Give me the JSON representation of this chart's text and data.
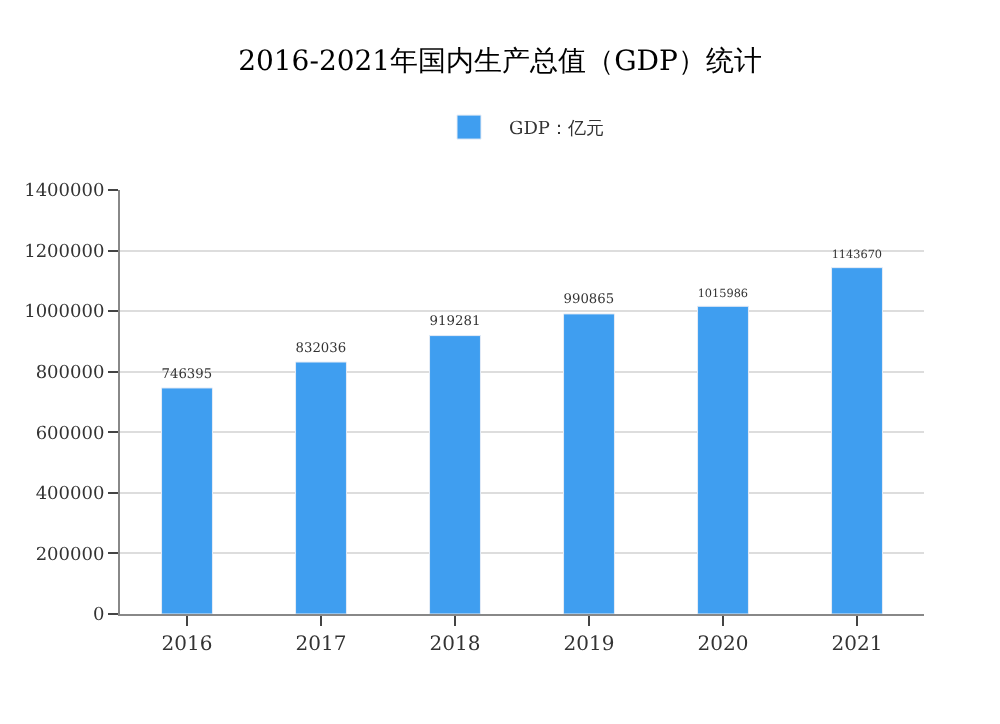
{
  "chart_data": {
    "type": "bar",
    "title": "2016-2021年国内生产总值（GDP）统计",
    "categories": [
      "2016",
      "2017",
      "2018",
      "2019",
      "2020",
      "2021"
    ],
    "series": [
      {
        "name": "GDP：亿元",
        "color": "#3f9ef0",
        "values": [
          746395,
          832036,
          919281,
          990865,
          1015986,
          1143670
        ]
      }
    ],
    "ylim": [
      0,
      1400000
    ],
    "yticks": [
      0,
      200000,
      400000,
      600000,
      800000,
      1000000,
      1200000,
      1400000
    ],
    "grid": "y",
    "legend": "top",
    "data_labels": true
  }
}
